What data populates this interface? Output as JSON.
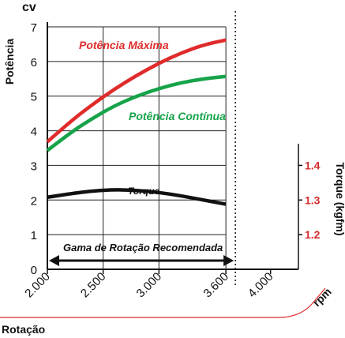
{
  "chart_data": {
    "type": "line",
    "x_unit": "rpm",
    "xlabel": "Rotação",
    "xlim": [
      2000,
      4250
    ],
    "xticks": [
      "2.000",
      "2.500",
      "3.000",
      "3.600",
      "4.000"
    ],
    "xtick_values": [
      2000,
      2500,
      3000,
      3600,
      4000
    ],
    "y_unit": "cv",
    "ylabel": "Potência",
    "ylim": [
      0,
      7
    ],
    "yticks": [
      "0",
      "1",
      "2",
      "3",
      "4",
      "5",
      "6",
      "7"
    ],
    "y2label": "Torque (kgfm)",
    "y2ticks": [
      "1.2",
      "1.3",
      "1.4"
    ],
    "y2tick_values": [
      1.2,
      1.3,
      1.4
    ],
    "series": [
      {
        "name": "Potência Máxima",
        "color": "#e02b2b",
        "axis": "left",
        "x": [
          2000,
          2200,
          2400,
          2600,
          2800,
          3000,
          3200,
          3400,
          3600
        ],
        "y": [
          3.68,
          4.25,
          4.75,
          5.2,
          5.6,
          5.95,
          6.25,
          6.48,
          6.62
        ]
      },
      {
        "name": "Potência Contínua",
        "color": "#17a34a",
        "axis": "left",
        "x": [
          2000,
          2200,
          2400,
          2600,
          2800,
          3000,
          3200,
          3400,
          3600
        ],
        "y": [
          3.43,
          3.93,
          4.35,
          4.72,
          5.0,
          5.22,
          5.39,
          5.5,
          5.57
        ]
      },
      {
        "name": "Torque",
        "color": "#111111",
        "axis": "right",
        "x": [
          2000,
          2200,
          2400,
          2600,
          2800,
          3000,
          3200,
          3400,
          3600
        ],
        "y": [
          1.308,
          1.318,
          1.326,
          1.33,
          1.328,
          1.322,
          1.312,
          1.3,
          1.288
        ]
      }
    ],
    "annotations": {
      "recommended_range_label": "Gama de Rotação Recomendada",
      "recommended_range": [
        2000,
        3600
      ],
      "rated_speed": 3600
    },
    "colors": {
      "accent_red": "#e02b2b",
      "accent_green": "#17a34a",
      "torque_axis_red": "#d42a2a"
    }
  }
}
